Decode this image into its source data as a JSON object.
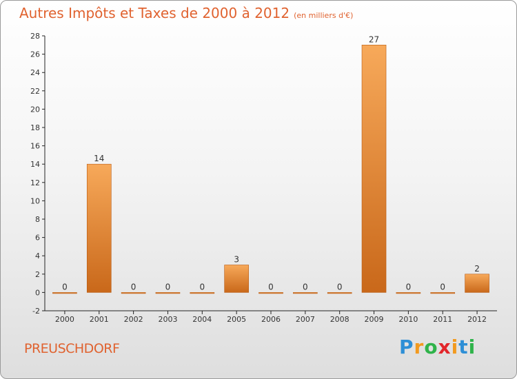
{
  "header": {
    "title": "Autres Impôts et Taxes de 2000 à 2012",
    "unit": "(en milliers d'€)"
  },
  "footer": {
    "town": "PREUSCHDORF"
  },
  "logo": {
    "letters": [
      "P",
      "r",
      "o",
      "x",
      "i",
      "t",
      "i"
    ],
    "colors": [
      "#2e8fd6",
      "#f29a1f",
      "#2fb34a",
      "#e2262b",
      "#f29a1f",
      "#2e8fd6",
      "#2fb34a"
    ]
  },
  "colors": {
    "title": "#e0622f",
    "bar_light": "#f7a95a",
    "bar_dark": "#c9681a"
  },
  "chart_data": {
    "type": "bar",
    "title": "Autres Impôts et Taxes de 2000 à 2012",
    "subtitle": "(en milliers d'€)",
    "categories": [
      "2000",
      "2001",
      "2002",
      "2003",
      "2004",
      "2005",
      "2006",
      "2007",
      "2008",
      "2009",
      "2010",
      "2011",
      "2012"
    ],
    "values": [
      0,
      14,
      0,
      0,
      0,
      3,
      0,
      0,
      0,
      27,
      0,
      0,
      2
    ],
    "value_labels": [
      "0",
      "14",
      "0",
      "0",
      "0",
      "3",
      "0",
      "0",
      "0",
      "27",
      "0",
      "0",
      "2"
    ],
    "ylim": [
      -2,
      28
    ],
    "yticks": [
      -2,
      0,
      2,
      4,
      6,
      8,
      10,
      12,
      14,
      16,
      18,
      20,
      22,
      24,
      26,
      28
    ],
    "grid": false,
    "legend": "none"
  }
}
